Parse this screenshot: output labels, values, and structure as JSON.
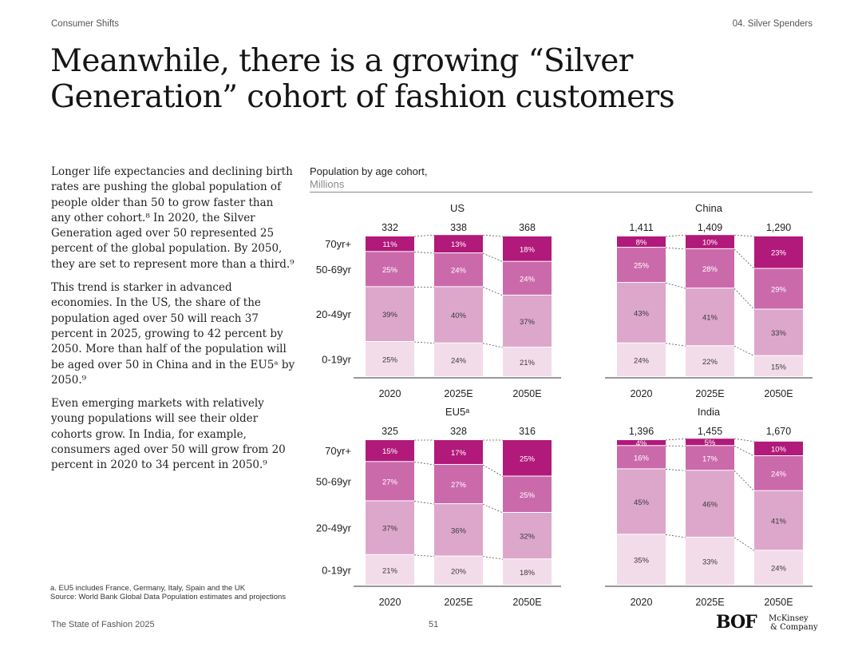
{
  "header": {
    "left": "Consumer Shifts",
    "right": "04. Silver Spenders"
  },
  "title": "Meanwhile, there is a growing “Silver Generation” cohort of fashion customers",
  "body": [
    "Longer life expectancies and declining birth rates are pushing the global population of people older than 50 to grow faster than any other cohort.⁸ In 2020, the Silver Generation aged over 50 represented 25 percent of the global population. By 2050, they are set to represent more than a third.⁹",
    "This trend is starker in advanced economies. In the US, the share of the population aged over 50 will reach 37 percent in 2025, growing to 42 percent by 2050. More than half of the population will be aged over 50 in China and in the EU5ᵃ by 2050.⁹",
    "Even emerging markets with relatively young populations will see their older cohorts grow. In India, for example, consumers aged over 50 will grow from 20 percent in 2020 to 34 percent in 2050.⁹"
  ],
  "chart_header": {
    "title": "Population by age cohort,",
    "unit": "Millions"
  },
  "colors": {
    "0-19yr": "#f3dcea",
    "20-49yr": "#dda7cb",
    "50-69yr": "#cb6aab",
    "70yr+": "#b1197a"
  },
  "chart_data": [
    {
      "type": "bar",
      "stacked": true,
      "normalized": true,
      "title": "US",
      "categories": [
        "2020",
        "2025E",
        "2050E"
      ],
      "totals": [
        "332",
        "338",
        "368"
      ],
      "series": [
        {
          "name": "0-19yr",
          "values": [
            25,
            24,
            21
          ]
        },
        {
          "name": "20-49yr",
          "values": [
            39,
            40,
            37
          ]
        },
        {
          "name": "50-69yr",
          "values": [
            25,
            24,
            24
          ]
        },
        {
          "name": "70yr+",
          "values": [
            11,
            13,
            18
          ]
        }
      ]
    },
    {
      "type": "bar",
      "stacked": true,
      "normalized": true,
      "title": "China",
      "categories": [
        "2020",
        "2025E",
        "2050E"
      ],
      "totals": [
        "1,411",
        "1,409",
        "1,290"
      ],
      "series": [
        {
          "name": "0-19yr",
          "values": [
            24,
            22,
            15
          ]
        },
        {
          "name": "20-49yr",
          "values": [
            43,
            41,
            33
          ]
        },
        {
          "name": "50-69yr",
          "values": [
            25,
            28,
            29
          ]
        },
        {
          "name": "70yr+",
          "values": [
            8,
            10,
            23
          ]
        }
      ]
    },
    {
      "type": "bar",
      "stacked": true,
      "normalized": true,
      "title": "EU5ᵃ",
      "categories": [
        "2020",
        "2025E",
        "2050E"
      ],
      "totals": [
        "325",
        "328",
        "316"
      ],
      "series": [
        {
          "name": "0-19yr",
          "values": [
            21,
            20,
            18
          ]
        },
        {
          "name": "20-49yr",
          "values": [
            37,
            36,
            32
          ]
        },
        {
          "name": "50-69yr",
          "values": [
            27,
            27,
            25
          ]
        },
        {
          "name": "70yr+",
          "values": [
            15,
            17,
            25
          ]
        }
      ]
    },
    {
      "type": "bar",
      "stacked": true,
      "normalized": true,
      "title": "India",
      "categories": [
        "2020",
        "2025E",
        "2050E"
      ],
      "totals": [
        "1,396",
        "1,455",
        "1,670"
      ],
      "series": [
        {
          "name": "0-19yr",
          "values": [
            35,
            33,
            24
          ]
        },
        {
          "name": "20-49yr",
          "values": [
            45,
            46,
            41
          ]
        },
        {
          "name": "50-69yr",
          "values": [
            16,
            17,
            24
          ]
        },
        {
          "name": "70yr+",
          "values": [
            4,
            5,
            10
          ]
        }
      ]
    }
  ],
  "footer": {
    "note": "a. EU5 includes France, Germany, Italy, Spain and the UK",
    "source": "Source: World Bank Global Data Population estimates and projections",
    "publication": "The State of Fashion 2025",
    "page": "51",
    "logo_bof": "BOF",
    "logo_mck_1": "McKinsey",
    "logo_mck_2": "& Company"
  }
}
